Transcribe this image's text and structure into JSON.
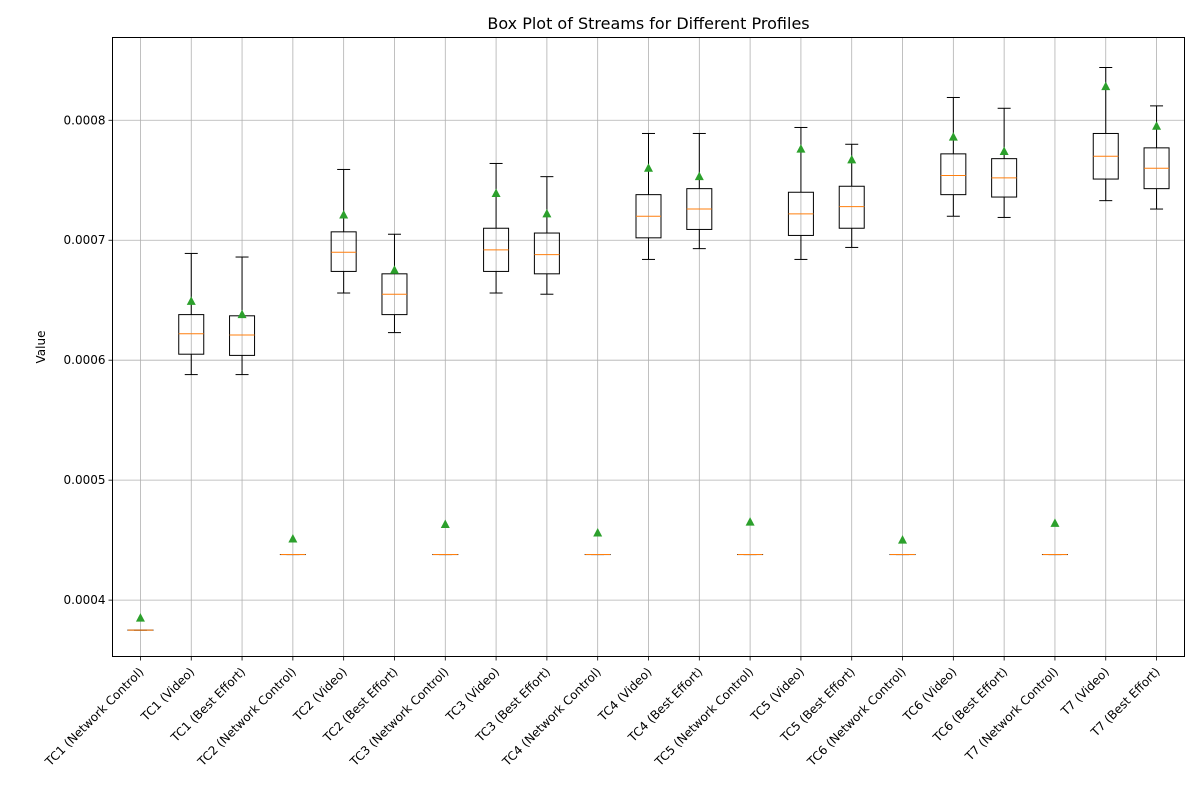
{
  "chart_data": {
    "type": "box",
    "title": "Box Plot of Streams for Different Profiles",
    "xlabel": "",
    "ylabel": "Value",
    "ylim": [
      0.000353,
      0.000869
    ],
    "yticks": [
      0.0004,
      0.0005,
      0.0006,
      0.0007,
      0.0008
    ],
    "ytick_labels": [
      "0.0004",
      "0.0005",
      "0.0006",
      "0.0007",
      "0.0008"
    ],
    "grid": true,
    "colors": {
      "box": "#000000",
      "median": "#ff7f0e",
      "mean": "#2ca02c",
      "grid": "#b0b0b0"
    },
    "categories": [
      "TC1 (Network Control)",
      "TC1 (Video)",
      "TC1 (Best Effort)",
      "TC2 (Network Control)",
      "TC2 (Video)",
      "TC2 (Best Effort)",
      "TC3 (Network Control)",
      "TC3 (Video)",
      "TC3 (Best Effort)",
      "TC4 (Network Control)",
      "TC4 (Video)",
      "TC4 (Best Effort)",
      "TC5 (Network Control)",
      "TC5 (Video)",
      "TC5 (Best Effort)",
      "TC6 (Network Control)",
      "TC6 (Video)",
      "TC6 (Best Effort)",
      "T7 (Network Control)",
      "T7 (Video)",
      "T7 (Best Effort)"
    ],
    "boxes": [
      {
        "whislo": 0.000375,
        "q1": 0.000375,
        "med": 0.000375,
        "q3": 0.000375,
        "whishi": 0.000375,
        "mean": 0.000385
      },
      {
        "whislo": 0.000588,
        "q1": 0.000605,
        "med": 0.000622,
        "q3": 0.000638,
        "whishi": 0.000689,
        "mean": 0.000649
      },
      {
        "whislo": 0.000588,
        "q1": 0.000604,
        "med": 0.000621,
        "q3": 0.000637,
        "whishi": 0.000686,
        "mean": 0.000638
      },
      {
        "whislo": 0.000438,
        "q1": 0.000438,
        "med": 0.000438,
        "q3": 0.000438,
        "whishi": 0.000438,
        "mean": 0.000451
      },
      {
        "whislo": 0.000656,
        "q1": 0.000674,
        "med": 0.00069,
        "q3": 0.000707,
        "whishi": 0.000759,
        "mean": 0.000721
      },
      {
        "whislo": 0.000623,
        "q1": 0.000638,
        "med": 0.000655,
        "q3": 0.000672,
        "whishi": 0.000705,
        "mean": 0.000675
      },
      {
        "whislo": 0.000438,
        "q1": 0.000438,
        "med": 0.000438,
        "q3": 0.000438,
        "whishi": 0.000438,
        "mean": 0.000463
      },
      {
        "whislo": 0.000656,
        "q1": 0.000674,
        "med": 0.000692,
        "q3": 0.00071,
        "whishi": 0.000764,
        "mean": 0.000739
      },
      {
        "whislo": 0.000655,
        "q1": 0.000672,
        "med": 0.000688,
        "q3": 0.000706,
        "whishi": 0.000753,
        "mean": 0.000722
      },
      {
        "whislo": 0.000438,
        "q1": 0.000438,
        "med": 0.000438,
        "q3": 0.000438,
        "whishi": 0.000438,
        "mean": 0.000456
      },
      {
        "whislo": 0.000684,
        "q1": 0.000702,
        "med": 0.00072,
        "q3": 0.000738,
        "whishi": 0.000789,
        "mean": 0.00076
      },
      {
        "whislo": 0.000693,
        "q1": 0.000709,
        "med": 0.000726,
        "q3": 0.000743,
        "whishi": 0.000789,
        "mean": 0.000753
      },
      {
        "whislo": 0.000438,
        "q1": 0.000438,
        "med": 0.000438,
        "q3": 0.000438,
        "whishi": 0.000438,
        "mean": 0.000465
      },
      {
        "whislo": 0.000684,
        "q1": 0.000704,
        "med": 0.000722,
        "q3": 0.00074,
        "whishi": 0.000794,
        "mean": 0.000776
      },
      {
        "whislo": 0.000694,
        "q1": 0.00071,
        "med": 0.000728,
        "q3": 0.000745,
        "whishi": 0.00078,
        "mean": 0.000767
      },
      {
        "whislo": 0.000438,
        "q1": 0.000438,
        "med": 0.000438,
        "q3": 0.000438,
        "whishi": 0.000438,
        "mean": 0.00045
      },
      {
        "whislo": 0.00072,
        "q1": 0.000738,
        "med": 0.000754,
        "q3": 0.000772,
        "whishi": 0.000819,
        "mean": 0.000786
      },
      {
        "whislo": 0.000719,
        "q1": 0.000736,
        "med": 0.000752,
        "q3": 0.000768,
        "whishi": 0.00081,
        "mean": 0.000774
      },
      {
        "whislo": 0.000438,
        "q1": 0.000438,
        "med": 0.000438,
        "q3": 0.000438,
        "whishi": 0.000438,
        "mean": 0.000464
      },
      {
        "whislo": 0.000733,
        "q1": 0.000751,
        "med": 0.00077,
        "q3": 0.000789,
        "whishi": 0.000844,
        "mean": 0.000828
      },
      {
        "whislo": 0.000726,
        "q1": 0.000743,
        "med": 0.00076,
        "q3": 0.000777,
        "whishi": 0.000812,
        "mean": 0.000795
      }
    ]
  }
}
